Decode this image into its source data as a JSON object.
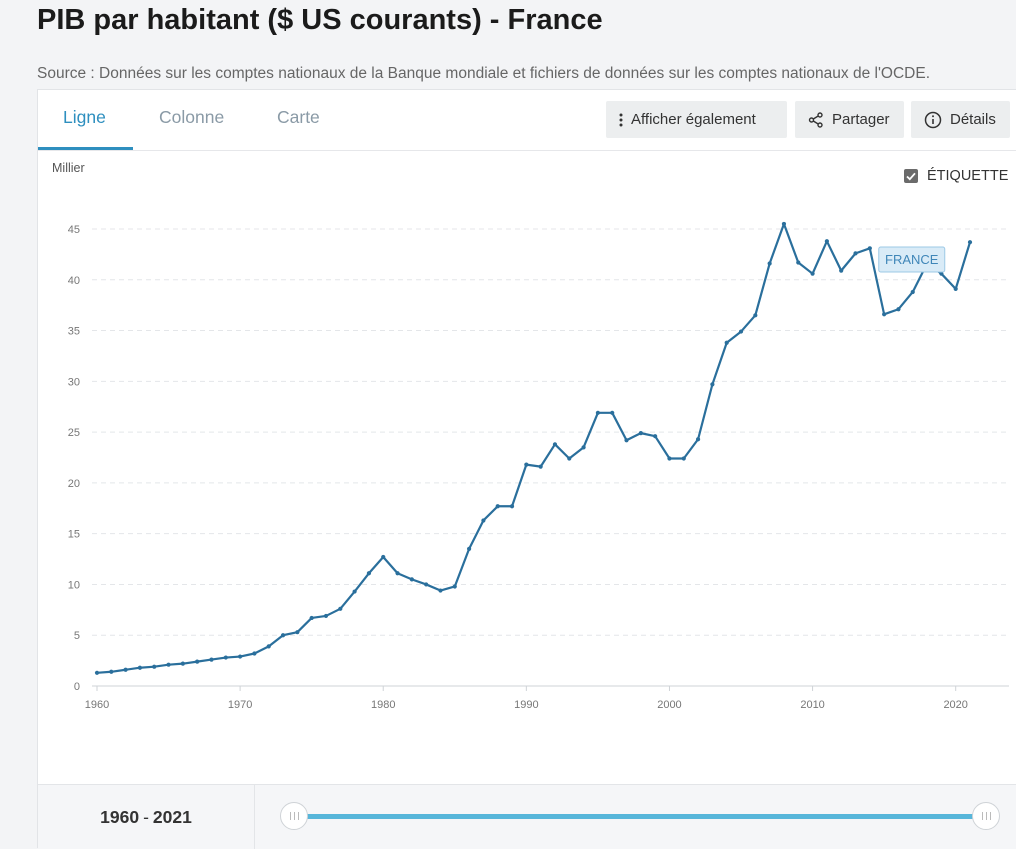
{
  "page": {
    "title": "PIB par habitant ($ US courants) - France",
    "source": "Source : Données sur les comptes nationaux de la Banque mondiale et fichiers de données sur les comptes nationaux de l'OCDE."
  },
  "tabs": [
    {
      "label": "Ligne",
      "active": true
    },
    {
      "label": "Colonne",
      "active": false
    },
    {
      "label": "Carte",
      "active": false
    }
  ],
  "toolbar": {
    "show_also_label": "Afficher également",
    "share_label": "Partager",
    "details_label": "Détails"
  },
  "chart_options": {
    "label_toggle_text": "ÉTIQUETTE",
    "label_toggle_checked": true
  },
  "range": {
    "start": "1960",
    "separator": "-",
    "end": "2021"
  },
  "colors": {
    "accent": "#2e8fbf",
    "line": "#2a6f9c",
    "slider": "#57b6da"
  },
  "chart_data": {
    "type": "line",
    "title": "",
    "unit_label": "Millier",
    "xlabel": "",
    "ylabel": "",
    "xlim": [
      1960,
      2021
    ],
    "ylim": [
      0,
      45
    ],
    "x_ticks": [
      1960,
      1970,
      1980,
      1990,
      2000,
      2010,
      2020
    ],
    "y_ticks": [
      0,
      5,
      10,
      15,
      20,
      25,
      30,
      35,
      40,
      45
    ],
    "grid": true,
    "series": [
      {
        "name": "FRANCE",
        "x": [
          1960,
          1961,
          1962,
          1963,
          1964,
          1965,
          1966,
          1967,
          1968,
          1969,
          1970,
          1971,
          1972,
          1973,
          1974,
          1975,
          1976,
          1977,
          1978,
          1979,
          1980,
          1981,
          1982,
          1983,
          1984,
          1985,
          1986,
          1987,
          1988,
          1989,
          1990,
          1991,
          1992,
          1993,
          1994,
          1995,
          1996,
          1997,
          1998,
          1999,
          2000,
          2001,
          2002,
          2003,
          2004,
          2005,
          2006,
          2007,
          2008,
          2009,
          2010,
          2011,
          2012,
          2013,
          2014,
          2015,
          2016,
          2017,
          2018,
          2019,
          2020,
          2021
        ],
        "y": [
          1.3,
          1.4,
          1.6,
          1.8,
          1.9,
          2.1,
          2.2,
          2.4,
          2.6,
          2.8,
          2.9,
          3.2,
          3.9,
          5.0,
          5.3,
          6.7,
          6.9,
          7.6,
          9.3,
          11.1,
          12.7,
          11.1,
          10.5,
          10.0,
          9.4,
          9.8,
          13.5,
          16.3,
          17.7,
          17.7,
          21.8,
          21.6,
          23.8,
          22.4,
          23.5,
          26.9,
          26.9,
          24.2,
          24.9,
          24.6,
          22.4,
          22.4,
          24.3,
          29.7,
          33.8,
          34.9,
          36.5,
          41.6,
          45.5,
          41.7,
          40.6,
          43.8,
          40.9,
          42.6,
          43.1,
          36.6,
          37.1,
          38.8,
          41.6,
          40.6,
          39.1,
          43.7
        ]
      }
    ]
  }
}
